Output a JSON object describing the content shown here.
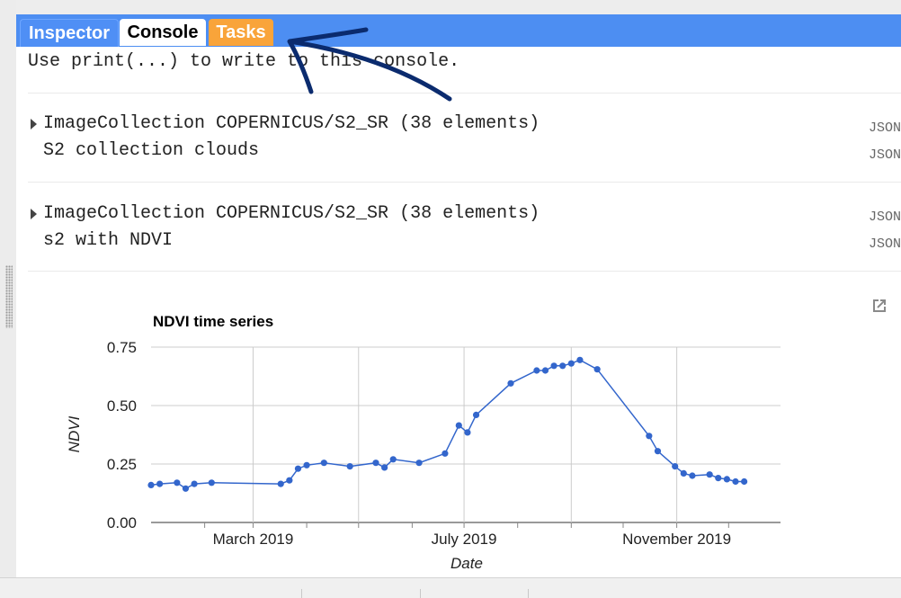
{
  "tabs": [
    {
      "label": "Inspector"
    },
    {
      "label": "Console"
    },
    {
      "label": "Tasks"
    }
  ],
  "console": {
    "hint": "Use print(...) to write to this console.",
    "entries": [
      {
        "line1": "ImageCollection COPERNICUS/S2_SR (38 elements)",
        "line2": "S2 collection clouds",
        "json1": "JSON",
        "json2": "JSON"
      },
      {
        "line1": "ImageCollection COPERNICUS/S2_SR (38 elements)",
        "line2": "s2 with NDVI",
        "json1": "JSON",
        "json2": "JSON"
      }
    ]
  },
  "icons": {
    "expand": "triangle-right-icon",
    "popout": "open-in-new-icon"
  },
  "colors": {
    "header_blue": "#4d8ef2",
    "tasks_orange": "#f9a43a",
    "series_blue": "#3366cc",
    "annotation": "#0b2b6e"
  },
  "chart_data": {
    "type": "line",
    "title": "NDVI time series",
    "xlabel": "Date",
    "ylabel": "NDVI",
    "ylim": [
      0,
      0.75
    ],
    "y_ticks": [
      "0.00",
      "0.25",
      "0.50",
      "0.75"
    ],
    "x_ticks": [
      "March 2019",
      "July 2019",
      "November 2019"
    ],
    "x_tick_dates": [
      "2019-03-01",
      "2019-07-01",
      "2019-11-01"
    ],
    "xlim": [
      "2019-01-01",
      "2019-12-31"
    ],
    "grid": true,
    "series": [
      {
        "x": [
          "2019-01-01",
          "2019-01-06",
          "2019-01-16",
          "2019-01-21",
          "2019-01-26",
          "2019-02-05",
          "2019-03-17",
          "2019-03-22",
          "2019-03-27",
          "2019-04-01",
          "2019-04-11",
          "2019-04-26",
          "2019-05-11",
          "2019-05-16",
          "2019-05-21",
          "2019-06-05",
          "2019-06-20",
          "2019-06-28",
          "2019-07-03",
          "2019-07-08",
          "2019-07-28",
          "2019-08-12",
          "2019-08-17",
          "2019-08-22",
          "2019-08-27",
          "2019-09-01",
          "2019-09-06",
          "2019-09-16",
          "2019-10-16",
          "2019-10-21",
          "2019-10-31",
          "2019-11-05",
          "2019-11-10",
          "2019-11-20",
          "2019-11-25",
          "2019-11-30",
          "2019-12-05",
          "2019-12-10"
        ],
        "values": [
          0.16,
          0.165,
          0.17,
          0.145,
          0.165,
          0.17,
          0.165,
          0.18,
          0.23,
          0.245,
          0.255,
          0.24,
          0.255,
          0.235,
          0.27,
          0.255,
          0.295,
          0.415,
          0.385,
          0.46,
          0.595,
          0.65,
          0.65,
          0.67,
          0.67,
          0.68,
          0.695,
          0.655,
          0.37,
          0.305,
          0.24,
          0.21,
          0.2,
          0.205,
          0.19,
          0.185,
          0.175,
          0.175
        ]
      }
    ]
  }
}
